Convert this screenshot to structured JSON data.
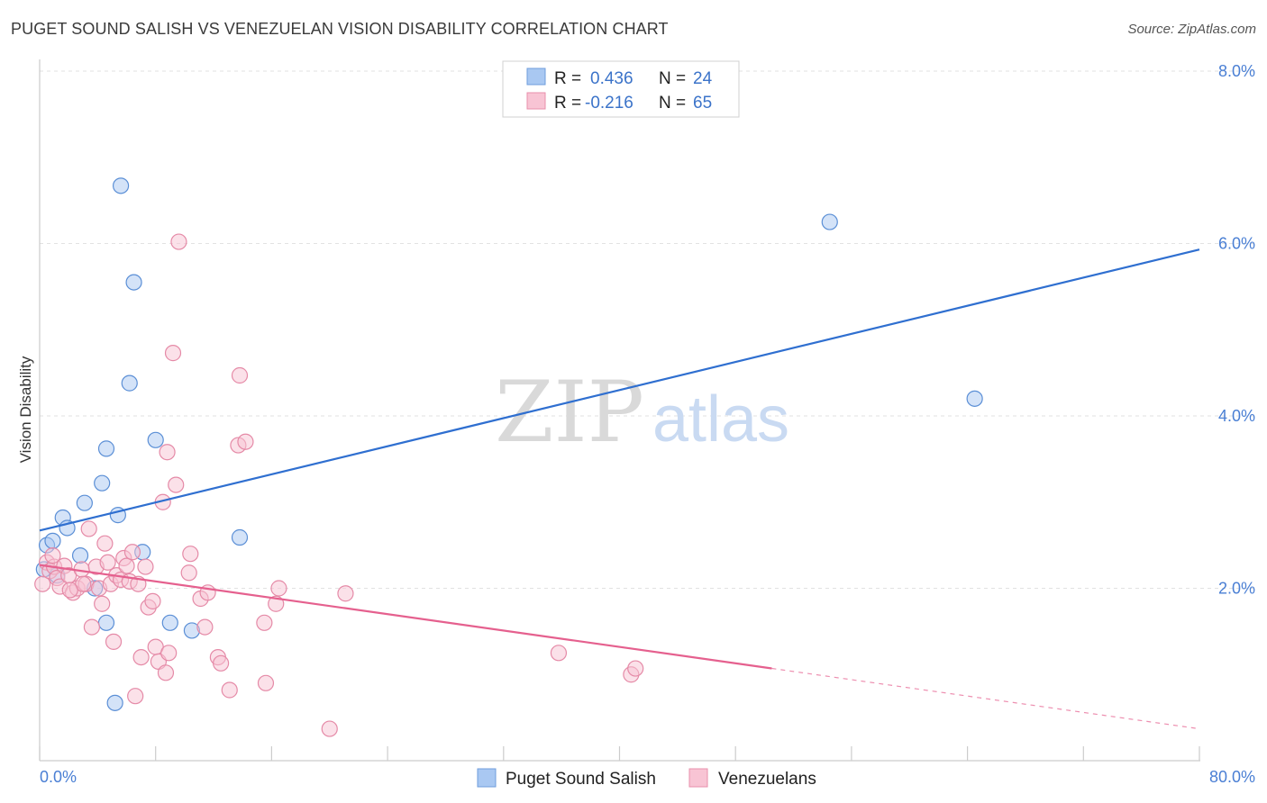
{
  "header": {
    "title": "PUGET SOUND SALISH VS VENEZUELAN VISION DISABILITY CORRELATION CHART",
    "source": "Source: ZipAtlas.com"
  },
  "watermark": {
    "zip": "ZIP",
    "atlas": "atlas"
  },
  "legend": {
    "r_label": "R =",
    "n_label": "N =",
    "items": [
      {
        "r": "0.436",
        "n": "24",
        "color": "#a9c8f2",
        "stroke": "#6f9edc"
      },
      {
        "r": "-0.216",
        "n": "65",
        "color": "#f8c4d4",
        "stroke": "#e88fab"
      }
    ]
  },
  "chart_data": {
    "type": "scatter",
    "ylabel": "Vision Disability",
    "xlabel": "",
    "xlim": [
      0,
      80
    ],
    "ylim": [
      0,
      8
    ],
    "x_tick_labels": [
      "0.0%",
      "80.0%"
    ],
    "y_ticks": [
      2,
      4,
      6,
      8
    ],
    "y_tick_labels": [
      "2.0%",
      "4.0%",
      "6.0%",
      "8.0%"
    ],
    "grid": true,
    "legend_position": "top-center",
    "series": [
      {
        "name": "Puget Sound Salish",
        "color": "#a9c8f2",
        "stroke": "#5b8fd6",
        "trend_color": "#2f6fd0",
        "trend": {
          "x0": 0,
          "y0": 2.67,
          "x1": 80,
          "y1": 5.93,
          "solid_until": 80
        },
        "points": [
          [
            0.5,
            2.5
          ],
          [
            0.9,
            2.55
          ],
          [
            1.6,
            2.82
          ],
          [
            1.9,
            2.7
          ],
          [
            2.8,
            2.38
          ],
          [
            3.1,
            2.99
          ],
          [
            3.8,
            2.0
          ],
          [
            4.3,
            3.22
          ],
          [
            4.6,
            1.6
          ],
          [
            4.6,
            3.62
          ],
          [
            5.2,
            0.67
          ],
          [
            5.4,
            2.85
          ],
          [
            5.6,
            6.67
          ],
          [
            6.2,
            4.38
          ],
          [
            6.5,
            5.55
          ],
          [
            7.1,
            2.42
          ],
          [
            8.0,
            3.72
          ],
          [
            9.0,
            1.6
          ],
          [
            10.5,
            1.51
          ],
          [
            13.8,
            2.59
          ],
          [
            54.5,
            6.25
          ],
          [
            64.5,
            4.2
          ],
          [
            0.3,
            2.22
          ],
          [
            1.2,
            2.15
          ]
        ]
      },
      {
        "name": "Venezuelans",
        "color": "#f8c4d4",
        "stroke": "#e58aa7",
        "trend_color": "#e5608e",
        "trend": {
          "x0": 0,
          "y0": 2.27,
          "x1": 80,
          "y1": 0.37,
          "solid_until": 50.5
        },
        "points": [
          [
            0.2,
            2.05
          ],
          [
            0.5,
            2.3
          ],
          [
            0.7,
            2.2
          ],
          [
            1.0,
            2.25
          ],
          [
            1.2,
            2.12
          ],
          [
            1.4,
            2.02
          ],
          [
            1.7,
            2.26
          ],
          [
            2.0,
            2.15
          ],
          [
            2.3,
            1.95
          ],
          [
            2.6,
            2.0
          ],
          [
            2.9,
            2.22
          ],
          [
            3.2,
            2.05
          ],
          [
            3.4,
            2.69
          ],
          [
            3.6,
            1.55
          ],
          [
            3.9,
            2.25
          ],
          [
            4.1,
            2.0
          ],
          [
            4.3,
            1.82
          ],
          [
            4.5,
            2.52
          ],
          [
            4.7,
            2.3
          ],
          [
            4.9,
            2.05
          ],
          [
            5.1,
            1.38
          ],
          [
            5.3,
            2.15
          ],
          [
            5.6,
            2.1
          ],
          [
            5.8,
            2.35
          ],
          [
            6.0,
            2.26
          ],
          [
            6.2,
            2.08
          ],
          [
            6.4,
            2.42
          ],
          [
            6.6,
            0.75
          ],
          [
            6.8,
            2.05
          ],
          [
            7.0,
            1.2
          ],
          [
            7.3,
            2.25
          ],
          [
            7.5,
            1.78
          ],
          [
            7.8,
            1.85
          ],
          [
            8.0,
            1.32
          ],
          [
            8.2,
            1.15
          ],
          [
            8.5,
            3.0
          ],
          [
            8.7,
            1.02
          ],
          [
            8.8,
            3.58
          ],
          [
            8.9,
            1.25
          ],
          [
            9.2,
            4.73
          ],
          [
            9.4,
            3.2
          ],
          [
            9.6,
            6.02
          ],
          [
            10.3,
            2.18
          ],
          [
            10.4,
            2.4
          ],
          [
            11.1,
            1.88
          ],
          [
            11.4,
            1.55
          ],
          [
            11.6,
            1.95
          ],
          [
            12.3,
            1.2
          ],
          [
            12.5,
            1.13
          ],
          [
            13.1,
            0.82
          ],
          [
            13.7,
            3.66
          ],
          [
            13.8,
            4.47
          ],
          [
            14.2,
            3.7
          ],
          [
            15.5,
            1.6
          ],
          [
            15.6,
            0.9
          ],
          [
            16.3,
            1.82
          ],
          [
            16.5,
            2.0
          ],
          [
            20.0,
            0.37
          ],
          [
            21.1,
            1.94
          ],
          [
            35.8,
            1.25
          ],
          [
            40.8,
            1.0
          ],
          [
            41.1,
            1.07
          ],
          [
            3.0,
            2.05
          ],
          [
            2.1,
            1.98
          ],
          [
            0.9,
            2.38
          ]
        ]
      }
    ]
  }
}
